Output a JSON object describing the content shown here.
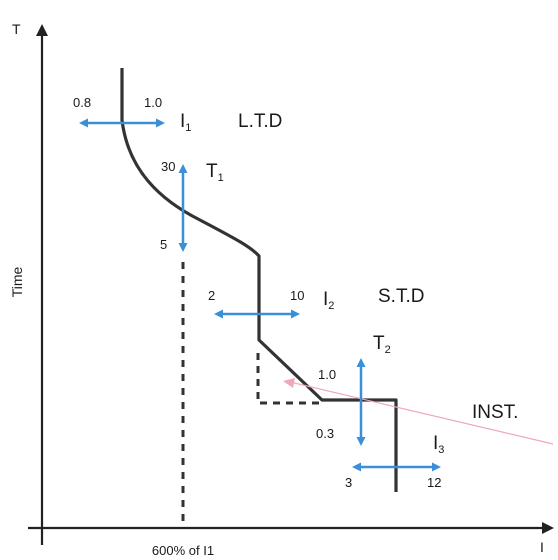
{
  "axes": {
    "y_label": "T",
    "y_title": "Time",
    "x_label": "I",
    "x_marker": "600% of I1"
  },
  "sections": {
    "ltd": "L.T.D",
    "std": "S.T.D",
    "inst": "INST."
  },
  "settings": {
    "i1": {
      "name": "I",
      "sub": "1",
      "min": "0.8",
      "max": "1.0"
    },
    "t1": {
      "name": "T",
      "sub": "1",
      "max": "30",
      "min": "5"
    },
    "i2": {
      "name": "I",
      "sub": "2",
      "min": "2",
      "max": "10"
    },
    "t2": {
      "name": "T",
      "sub": "2",
      "max": "1.0",
      "min": "0.3"
    },
    "i3": {
      "name": "I",
      "sub": "3",
      "min": "3",
      "max": "12"
    }
  },
  "colors": {
    "curve": "#333333",
    "arrow": "#3a8fd6",
    "axis": "#222222",
    "pointer": "#f0a8b8"
  }
}
